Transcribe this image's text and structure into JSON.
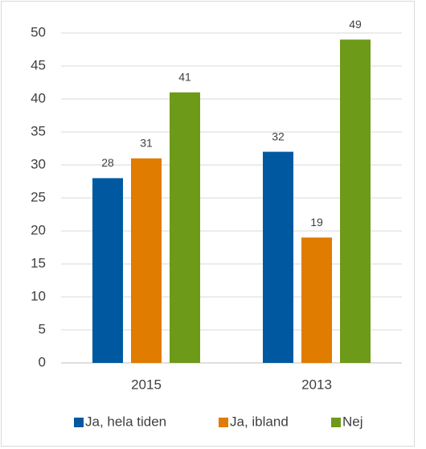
{
  "chart_data": {
    "type": "bar",
    "categories": [
      "2015",
      "2013"
    ],
    "series": [
      {
        "name": "Ja, hela tiden",
        "color": "#0059a0",
        "values": [
          28,
          32
        ]
      },
      {
        "name": "Ja, ibland",
        "color": "#e07c00",
        "values": [
          31,
          19
        ]
      },
      {
        "name": "Nej",
        "color": "#6e9a1a",
        "values": [
          41,
          49
        ]
      }
    ],
    "ylim": [
      0,
      50
    ],
    "yticks": [
      0,
      5,
      10,
      15,
      20,
      25,
      30,
      35,
      40,
      45,
      50
    ],
    "grid": true,
    "legend": "bottom"
  }
}
